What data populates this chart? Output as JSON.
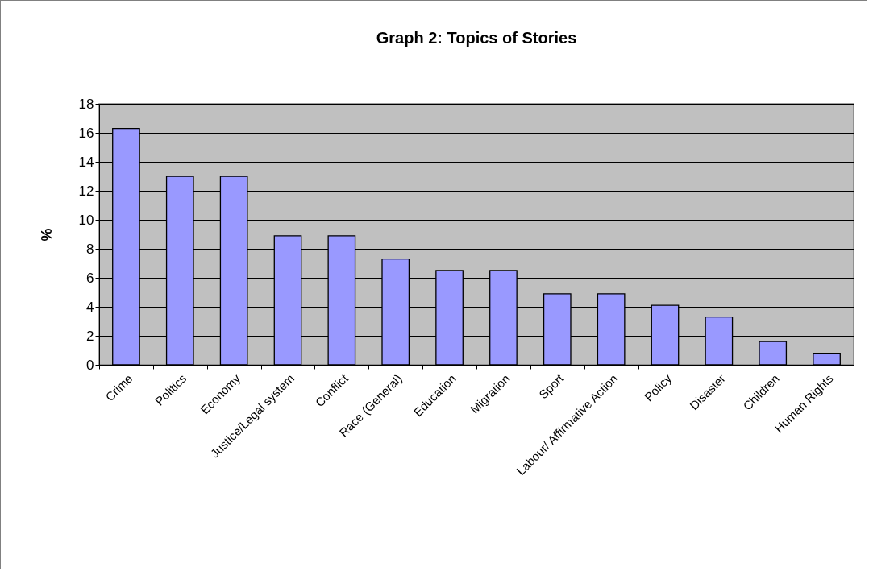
{
  "chart_data": {
    "type": "bar",
    "title": "Graph 2: Topics of Stories",
    "ylabel": "%",
    "categories": [
      "Crime",
      "Politics",
      "Economy",
      "Justice/Legal system",
      "Conflict",
      "Race (General)",
      "Education",
      "Migration",
      "Sport",
      "Labour/ Affirmative Action",
      "Policy",
      "Disaster",
      "Children",
      "Human Rights"
    ],
    "values": [
      16.3,
      13.0,
      13.0,
      8.9,
      8.9,
      7.3,
      6.5,
      6.5,
      4.9,
      4.9,
      4.1,
      3.3,
      1.6,
      0.8
    ],
    "color": "#9999ff",
    "ylim": [
      0,
      18
    ],
    "yticks": [
      0,
      2,
      4,
      6,
      8,
      10,
      12,
      14,
      16,
      18
    ],
    "grid": "y"
  }
}
